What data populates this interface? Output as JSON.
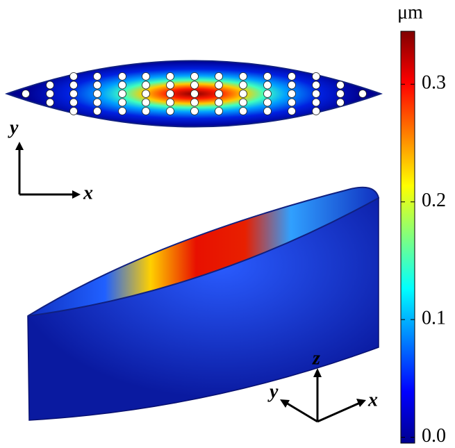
{
  "colorbar": {
    "unit": "μm",
    "lim": [
      -0.005,
      0.345
    ],
    "ticks": [
      {
        "value": 0,
        "label": "0.0"
      },
      {
        "value": 0.1,
        "label": "0.1"
      },
      {
        "value": 0.2,
        "label": "0.2"
      },
      {
        "value": 0.3,
        "label": "0.3"
      }
    ]
  },
  "top_view_axes": {
    "vertical": "y",
    "horizontal": "x"
  },
  "iso_view_axes": {
    "vertical": "z",
    "left": "y",
    "right": "x"
  }
}
